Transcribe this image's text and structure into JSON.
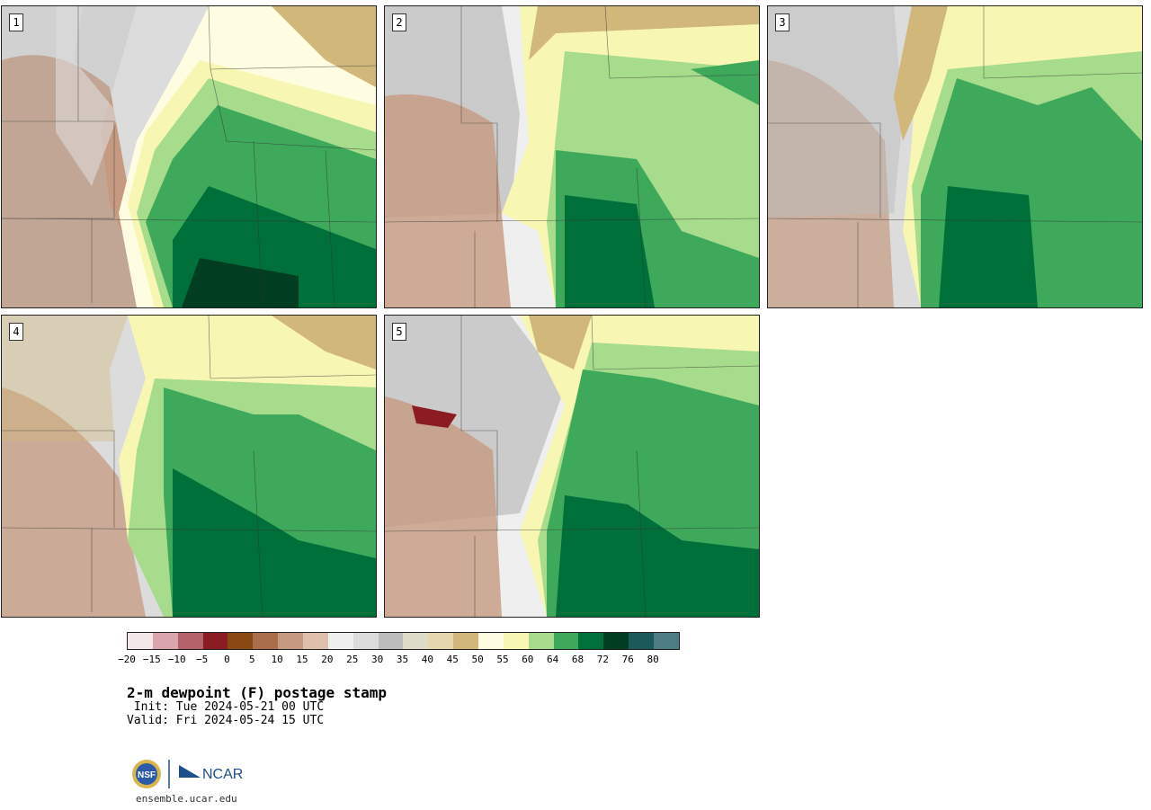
{
  "panels": [
    {
      "label": "1"
    },
    {
      "label": "2"
    },
    {
      "label": "3"
    },
    {
      "label": "4"
    },
    {
      "label": "5"
    }
  ],
  "colorbar": {
    "colors": [
      "#f3e7ea",
      "#d9a6ad",
      "#b4626a",
      "#8c1c24",
      "#8a4812",
      "#aa6e4c",
      "#c59a80",
      "#ddbfab",
      "#efefef",
      "#dcdcdc",
      "#bcbcbc",
      "#dedcc8",
      "#e6d6ae",
      "#d1b77a",
      "#fffde1",
      "#f7f7b3",
      "#a6dc8c",
      "#3ea95a",
      "#00703b",
      "#003d21",
      "#1a5a5a",
      "#4e7c84"
    ],
    "tick_labels": [
      "−20",
      "−15",
      "−10",
      "−5",
      "0",
      "5",
      "10",
      "15",
      "20",
      "25",
      "30",
      "35",
      "40",
      "45",
      "50",
      "55",
      "60",
      "64",
      "68",
      "72",
      "76",
      "80"
    ]
  },
  "title": "2-m dewpoint (F) postage stamp",
  "init": " Init: Tue 2024-05-21 00 UTC",
  "valid": "Valid: Fri 2024-05-24 15 UTC",
  "logo": {
    "text": "NSF | NCAR",
    "brand_color": "#1c4f8c"
  },
  "footer": "ensemble.ucar.edu"
}
